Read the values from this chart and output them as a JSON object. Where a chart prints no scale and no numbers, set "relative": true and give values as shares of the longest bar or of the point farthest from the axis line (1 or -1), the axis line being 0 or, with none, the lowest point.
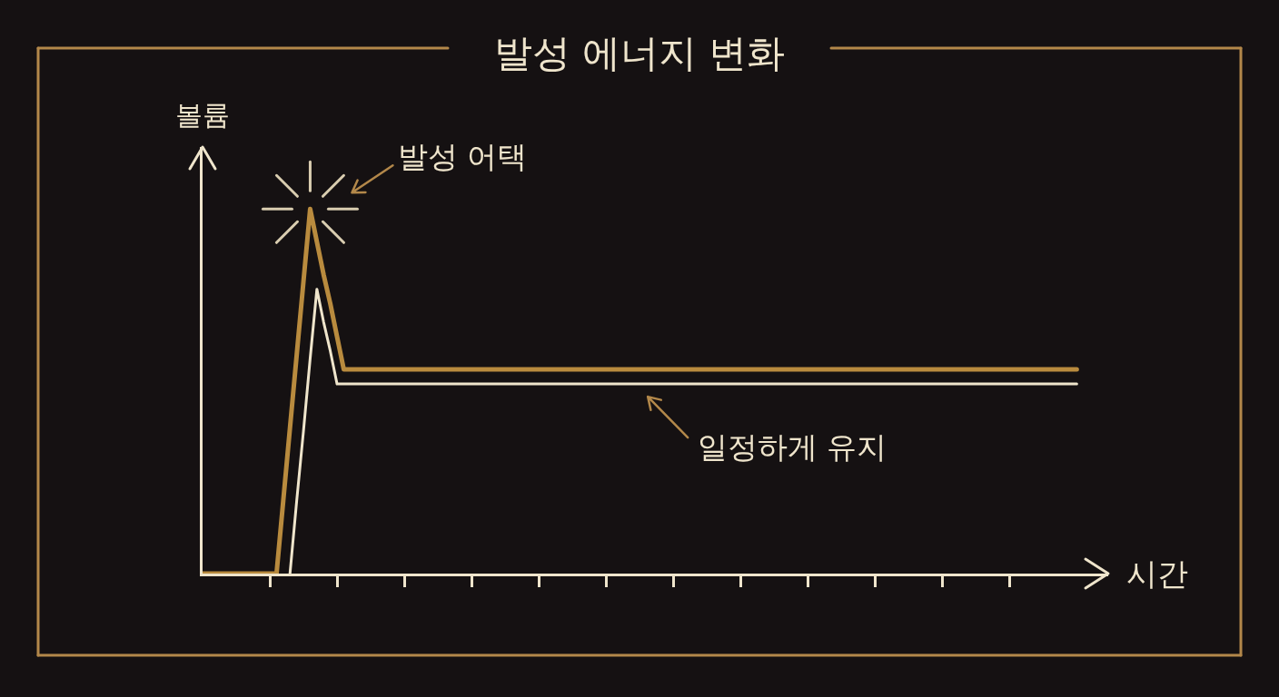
{
  "chart_data": {
    "type": "line",
    "title": "발성 에너지 변화",
    "xlabel": "시간",
    "ylabel": "볼륨",
    "relative": true,
    "grid": false,
    "line_style": "solid",
    "annotations": [
      "발성 어택",
      "일정하게 유지"
    ],
    "categories": [
      null,
      null,
      null,
      null,
      null,
      null,
      null,
      null,
      null,
      null,
      null,
      null,
      null,
      null,
      null,
      null,
      null,
      null,
      null,
      null,
      null,
      null,
      null,
      null,
      null,
      null,
      null,
      null,
      null,
      null,
      null,
      null,
      null,
      null,
      null,
      null,
      null,
      null,
      null,
      null,
      null,
      null,
      null,
      null,
      null,
      null,
      null,
      null,
      null,
      null,
      null,
      null,
      null,
      null,
      null,
      null,
      null,
      null,
      null,
      null,
      null,
      null,
      null,
      null,
      null,
      null,
      null,
      null,
      null,
      null,
      null,
      null,
      null,
      null,
      null,
      null,
      null,
      null,
      null,
      null,
      null,
      null,
      null,
      null,
      null,
      null,
      null,
      null,
      null,
      null,
      null,
      null,
      null,
      null,
      null,
      null,
      null,
      null,
      null,
      null,
      null,
      null,
      null,
      null,
      null,
      null,
      null,
      null,
      null,
      null,
      null,
      null,
      null,
      null,
      null,
      null,
      null,
      null,
      null,
      null,
      null,
      null,
      null,
      null,
      null,
      null,
      null,
      null,
      null,
      null,
      null
    ],
    "series": [
      {
        "color": "#b98b3e",
        "values": [
          0,
          0,
          0,
          0,
          0,
          0,
          0,
          0,
          0,
          0,
          0,
          0,
          0.2,
          0.4,
          0.6,
          0.8,
          1,
          0.91,
          0.82,
          0.74,
          0.65,
          0.56,
          0.56,
          0.56,
          0.56,
          0.56,
          0.56,
          0.56,
          0.56,
          0.56,
          0.56,
          0.56,
          0.56,
          0.56,
          0.56,
          0.56,
          0.56,
          0.56,
          0.56,
          0.56,
          0.56,
          0.56,
          0.56,
          0.56,
          0.56,
          0.56,
          0.56,
          0.56,
          0.56,
          0.56,
          0.56,
          0.56,
          0.56,
          0.56,
          0.56,
          0.56,
          0.56,
          0.56,
          0.56,
          0.56,
          0.56,
          0.56,
          0.56,
          0.56,
          0.56,
          0.56,
          0.56,
          0.56,
          0.56,
          0.56,
          0.56,
          0.56,
          0.56,
          0.56,
          0.56,
          0.56,
          0.56,
          0.56,
          0.56,
          0.56,
          0.56,
          0.56,
          0.56,
          0.56,
          0.56,
          0.56,
          0.56,
          0.56,
          0.56,
          0.56,
          0.56,
          0.56,
          0.56,
          0.56,
          0.56,
          0.56,
          0.56,
          0.56,
          0.56,
          0.56,
          0.56,
          0.56,
          0.56,
          0.56,
          0.56,
          0.56,
          0.56,
          0.56,
          0.56,
          0.56,
          0.56,
          0.56,
          0.56,
          0.56,
          0.56,
          0.56,
          0.56,
          0.56,
          0.56,
          0.56,
          0.56,
          0.56,
          0.56,
          0.56,
          0.56,
          0.56,
          0.56,
          0.56,
          0.56,
          0.56,
          0.56
        ]
      },
      {
        "color": "#efe5cc",
        "values": [
          null,
          null,
          null,
          null,
          null,
          null,
          null,
          null,
          null,
          null,
          null,
          null,
          null,
          0,
          0.2,
          0.39,
          0.59,
          0.78,
          0.69,
          0.61,
          0.52,
          0.52,
          0.52,
          0.52,
          0.52,
          0.52,
          0.52,
          0.52,
          0.52,
          0.52,
          0.52,
          0.52,
          0.52,
          0.52,
          0.52,
          0.52,
          0.52,
          0.52,
          0.52,
          0.52,
          0.52,
          0.52,
          0.52,
          0.52,
          0.52,
          0.52,
          0.52,
          0.52,
          0.52,
          0.52,
          0.52,
          0.52,
          0.52,
          0.52,
          0.52,
          0.52,
          0.52,
          0.52,
          0.52,
          0.52,
          0.52,
          0.52,
          0.52,
          0.52,
          0.52,
          0.52,
          0.52,
          0.52,
          0.52,
          0.52,
          0.52,
          0.52,
          0.52,
          0.52,
          0.52,
          0.52,
          0.52,
          0.52,
          0.52,
          0.52,
          0.52,
          0.52,
          0.52,
          0.52,
          0.52,
          0.52,
          0.52,
          0.52,
          0.52,
          0.52,
          0.52,
          0.52,
          0.52,
          0.52,
          0.52,
          0.52,
          0.52,
          0.52,
          0.52,
          0.52,
          0.52,
          0.52,
          0.52,
          0.52,
          0.52,
          0.52,
          0.52,
          0.52,
          0.52,
          0.52,
          0.52,
          0.52,
          0.52,
          0.52,
          0.52,
          0.52,
          0.52,
          0.52,
          0.52,
          0.52,
          0.52,
          0.52,
          0.52,
          0.52,
          0.52,
          0.52,
          0.52,
          0.52,
          0.52,
          0.52,
          0.52
        ]
      }
    ]
  }
}
